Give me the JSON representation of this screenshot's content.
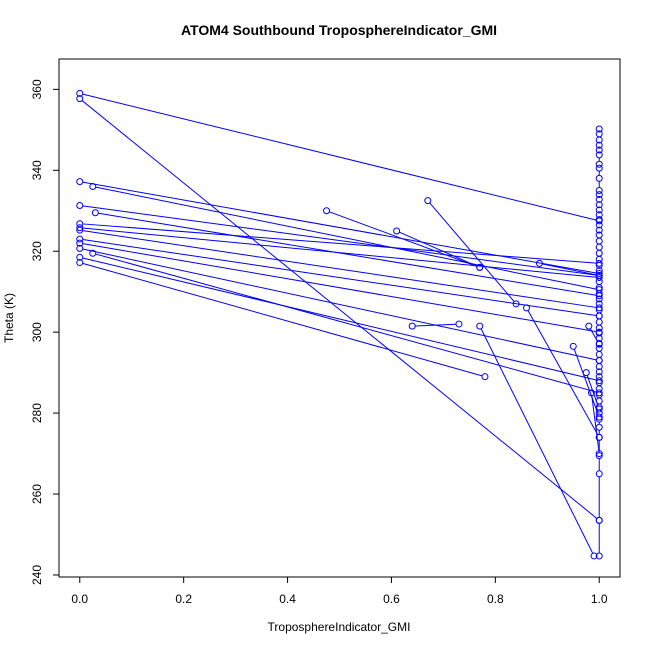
{
  "chart_data": {
    "type": "line",
    "title": "ATOM4 Southbound TroposphereIndicator_GMI",
    "xlabel": "TroposphereIndicator_GMI",
    "ylabel": "Theta (K)",
    "xlim": [
      -0.04,
      1.04
    ],
    "ylim": [
      239.5,
      367.5
    ],
    "xticks": [
      0.0,
      0.2,
      0.4,
      0.6,
      0.8,
      1.0
    ],
    "xtick_labels": [
      "0.0",
      "0.2",
      "0.4",
      "0.6",
      "0.8",
      "1.0"
    ],
    "yticks": [
      240,
      260,
      280,
      300,
      320,
      340,
      360
    ],
    "ytick_labels": [
      "240",
      "260",
      "280",
      "300",
      "320",
      "340",
      "360"
    ],
    "grid": false,
    "legend": "none",
    "color": "#0000ff",
    "marker": "open-circle",
    "series": [
      {
        "x": [
          0.0,
          1.0
        ],
        "y": [
          359.0,
          327.5
        ]
      },
      {
        "x": [
          0.0,
          1.0
        ],
        "y": [
          357.7,
          253.5
        ]
      },
      {
        "x": [
          0.0,
          1.0
        ],
        "y": [
          337.2,
          314.5
        ]
      },
      {
        "x": [
          0.025,
          1.0
        ],
        "y": [
          336.0,
          310.5
        ]
      },
      {
        "x": [
          0.0,
          1.0
        ],
        "y": [
          331.3,
          314.0
        ]
      },
      {
        "x": [
          0.03,
          1.0
        ],
        "y": [
          329.5,
          309.0
        ]
      },
      {
        "x": [
          0.0,
          1.0
        ],
        "y": [
          326.8,
          317.0
        ]
      },
      {
        "x": [
          0.0,
          1.0
        ],
        "y": [
          325.8,
          313.5
        ]
      },
      {
        "x": [
          0.0,
          1.0
        ],
        "y": [
          325.2,
          306.0
        ]
      },
      {
        "x": [
          0.0,
          1.0
        ],
        "y": [
          323.0,
          304.0
        ]
      },
      {
        "x": [
          0.0,
          1.0
        ],
        "y": [
          322.0,
          300.0
        ]
      },
      {
        "x": [
          0.0,
          1.0
        ],
        "y": [
          320.7,
          293.0
        ]
      },
      {
        "x": [
          0.0,
          1.0
        ],
        "y": [
          318.5,
          288.0
        ]
      },
      {
        "x": [
          0.025,
          1.0
        ],
        "y": [
          319.5,
          285.0
        ]
      },
      {
        "x": [
          0.0,
          0.78
        ],
        "y": [
          317.2,
          289.0
        ]
      },
      {
        "x": [
          0.475,
          0.77
        ],
        "y": [
          330.0,
          316.0
        ]
      },
      {
        "x": [
          0.61,
          0.77
        ],
        "y": [
          325.0,
          316.0
        ]
      },
      {
        "x": [
          0.67,
          0.84
        ],
        "y": [
          332.5,
          307.0
        ]
      },
      {
        "x": [
          0.885,
          1.0
        ],
        "y": [
          317.0,
          314.0
        ]
      },
      {
        "x": [
          0.64,
          0.73
        ],
        "y": [
          301.5,
          302.0
        ]
      },
      {
        "x": [
          0.77,
          0.99
        ],
        "y": [
          301.5,
          244.7
        ]
      },
      {
        "x": [
          0.86,
          1.0
        ],
        "y": [
          306.0,
          274.0
        ]
      },
      {
        "x": [
          0.95,
          1.0
        ],
        "y": [
          296.5,
          279.0
        ]
      },
      {
        "x": [
          0.975,
          1.0
        ],
        "y": [
          290.0,
          281.0
        ]
      },
      {
        "x": [
          0.98,
          1.0
        ],
        "y": [
          301.5,
          297.0
        ]
      },
      {
        "x": [
          0.985,
          1.0
        ],
        "y": [
          285.0,
          270.0
        ]
      }
    ],
    "x_one_points": [
      350.2,
      349.0,
      347.5,
      346.2,
      345.0,
      343.8,
      341.5,
      340.5,
      338.0,
      335.0,
      334.0,
      332.8,
      331.5,
      330.2,
      329.0,
      327.8,
      326.5,
      325.2,
      324.0,
      322.5,
      321.0,
      319.5,
      318.0,
      316.5,
      315.2,
      314.0,
      312.5,
      311.0,
      309.5,
      308.2,
      307.0,
      305.5,
      304.0,
      302.5,
      301.0,
      299.8,
      298.5,
      297.2,
      296.0,
      294.5,
      293.0,
      291.5,
      290.2,
      289.0,
      287.5,
      286.0,
      284.5,
      283.0,
      281.5,
      280.0,
      278.5,
      276.5,
      274.0,
      269.5,
      265.0,
      253.5,
      244.7
    ]
  }
}
